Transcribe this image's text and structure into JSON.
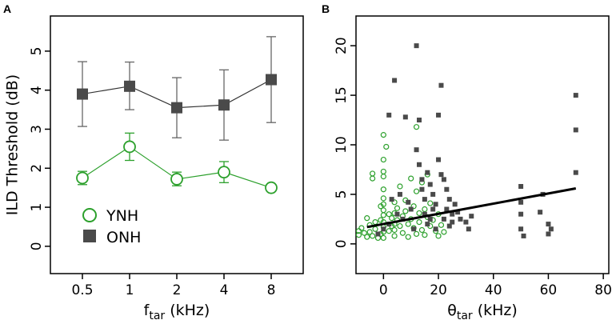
{
  "colors": {
    "ynh": "#2ca02c",
    "onh": "#4a4a4a",
    "axis": "#000000",
    "fit": "#000000"
  },
  "chart_data": [
    {
      "panel": "A",
      "type": "line",
      "categories": [
        "0.5",
        "1",
        "2",
        "4",
        "8"
      ],
      "ylabel": "ILD Threshold (dB)",
      "xlabel_main": "f",
      "xlabel_sub": "tar",
      "xlabel_unit": " (kHz)",
      "ylim": [
        -0.7,
        5.9
      ],
      "yticks": [
        0,
        1,
        2,
        3,
        4,
        5
      ],
      "legend_placement": "bottom-left",
      "series": [
        {
          "name": "YNH",
          "marker": "open-circle",
          "values": [
            1.75,
            2.55,
            1.72,
            1.9,
            1.5
          ],
          "err_low": [
            1.58,
            2.2,
            1.55,
            1.63,
            1.5
          ],
          "err_high": [
            1.92,
            2.9,
            1.9,
            2.17,
            1.5
          ]
        },
        {
          "name": "ONH",
          "marker": "filled-square",
          "values": [
            3.9,
            4.1,
            3.55,
            3.62,
            4.27
          ],
          "err_low": [
            3.07,
            3.5,
            2.78,
            2.72,
            3.17
          ],
          "err_high": [
            4.73,
            4.72,
            4.32,
            4.52,
            5.37
          ]
        }
      ]
    },
    {
      "panel": "B",
      "type": "scatter",
      "xlabel_main": "θ",
      "xlabel_sub": "tar",
      "xlabel_unit": " (kHz)",
      "xlim": [
        -10,
        82
      ],
      "ylim": [
        -3,
        23
      ],
      "xticks": [
        0,
        20,
        40,
        60,
        80
      ],
      "yticks": [
        0,
        5,
        10,
        15,
        20
      ],
      "series": [
        {
          "name": "YNH",
          "marker": "open-circle",
          "points": [
            [
              -9,
              1.3
            ],
            [
              -9,
              0.9
            ],
            [
              -8,
              1.6
            ],
            [
              -7,
              1.1
            ],
            [
              -6,
              2.6
            ],
            [
              -6,
              0.7
            ],
            [
              -5,
              1.9
            ],
            [
              -5,
              1.2
            ],
            [
              -4,
              7.1
            ],
            [
              -4,
              6.6
            ],
            [
              -4,
              0.8
            ],
            [
              -3,
              2.2
            ],
            [
              -3,
              1.5
            ],
            [
              -2,
              0.6
            ],
            [
              -1,
              3.8
            ],
            [
              -1,
              2.4
            ],
            [
              -1,
              1.0
            ],
            [
              0,
              11.0
            ],
            [
              0,
              8.5
            ],
            [
              0,
              7.3
            ],
            [
              0,
              6.8
            ],
            [
              0,
              5.5
            ],
            [
              0,
              4.6
            ],
            [
              0,
              4.0
            ],
            [
              0,
              3.4
            ],
            [
              0,
              2.9
            ],
            [
              0,
              2.2
            ],
            [
              0,
              1.7
            ],
            [
              0,
              1.2
            ],
            [
              0,
              0.6
            ],
            [
              1,
              9.8
            ],
            [
              2,
              3.0
            ],
            [
              2,
              1.3
            ],
            [
              3,
              2.6
            ],
            [
              3,
              1.8
            ],
            [
              4,
              4.2
            ],
            [
              4,
              3.1
            ],
            [
              4,
              2.0
            ],
            [
              4,
              1.4
            ],
            [
              4,
              0.8
            ],
            [
              5,
              3.6
            ],
            [
              5,
              2.4
            ],
            [
              6,
              5.8
            ],
            [
              6,
              1.8
            ],
            [
              7,
              2.8
            ],
            [
              7,
              1.1
            ],
            [
              8,
              3.3
            ],
            [
              8,
              4.4
            ],
            [
              9,
              2.0
            ],
            [
              9,
              0.7
            ],
            [
              10,
              6.6
            ],
            [
              10,
              2.5
            ],
            [
              11,
              3.8
            ],
            [
              11,
              1.6
            ],
            [
              12,
              11.8
            ],
            [
              12,
              5.3
            ],
            [
              12,
              1.0
            ],
            [
              13,
              3.1
            ],
            [
              13,
              2.2
            ],
            [
              14,
              6.2
            ],
            [
              14,
              1.4
            ],
            [
              15,
              3.5
            ],
            [
              15,
              0.9
            ],
            [
              16,
              7.0
            ],
            [
              16,
              2.7
            ],
            [
              17,
              4.1
            ],
            [
              17,
              1.8
            ],
            [
              18,
              2.4
            ],
            [
              19,
              1.3
            ],
            [
              20,
              3.0
            ],
            [
              20,
              0.8
            ],
            [
              21,
              1.9
            ],
            [
              22,
              1.2
            ]
          ]
        },
        {
          "name": "ONH",
          "marker": "filled-square",
          "points": [
            [
              -2,
              1.0
            ],
            [
              0,
              1.5
            ],
            [
              2,
              13.0
            ],
            [
              2,
              2.0
            ],
            [
              3,
              4.5
            ],
            [
              4,
              16.5
            ],
            [
              5,
              3.0
            ],
            [
              6,
              5.0
            ],
            [
              7,
              2.5
            ],
            [
              8,
              12.8
            ],
            [
              9,
              4.2
            ],
            [
              10,
              3.5
            ],
            [
              11,
              1.5
            ],
            [
              12,
              20.0
            ],
            [
              12,
              9.5
            ],
            [
              13,
              12.5
            ],
            [
              13,
              8.0
            ],
            [
              14,
              6.5
            ],
            [
              14,
              5.5
            ],
            [
              15,
              4.5
            ],
            [
              15,
              3.0
            ],
            [
              16,
              2.0
            ],
            [
              16,
              7.2
            ],
            [
              17,
              2.5
            ],
            [
              17,
              6.0
            ],
            [
              18,
              3.5
            ],
            [
              18,
              5.0
            ],
            [
              19,
              4.0
            ],
            [
              19,
              1.5
            ],
            [
              20,
              13.0
            ],
            [
              20,
              8.5
            ],
            [
              21,
              16.0
            ],
            [
              21,
              7.0
            ],
            [
              22,
              6.5
            ],
            [
              22,
              2.5
            ],
            [
              23,
              5.5
            ],
            [
              23,
              3.5
            ],
            [
              24,
              4.5
            ],
            [
              24,
              1.8
            ],
            [
              25,
              3.0
            ],
            [
              25,
              2.2
            ],
            [
              26,
              4.0
            ],
            [
              27,
              3.2
            ],
            [
              28,
              2.5
            ],
            [
              30,
              2.2
            ],
            [
              31,
              1.5
            ],
            [
              32,
              2.8
            ],
            [
              50,
              5.8
            ],
            [
              50,
              4.2
            ],
            [
              50,
              3.0
            ],
            [
              50,
              1.5
            ],
            [
              51,
              0.8
            ],
            [
              57,
              3.2
            ],
            [
              58,
              5.0
            ],
            [
              60,
              2.0
            ],
            [
              60,
              1.0
            ],
            [
              61,
              1.5
            ],
            [
              70,
              15.0
            ],
            [
              70,
              11.5
            ],
            [
              70,
              7.2
            ]
          ]
        }
      ],
      "fit_line": {
        "x": [
          -6,
          70
        ],
        "y": [
          1.7,
          5.6
        ]
      }
    }
  ],
  "panels": {
    "a": "A",
    "b": "B"
  }
}
